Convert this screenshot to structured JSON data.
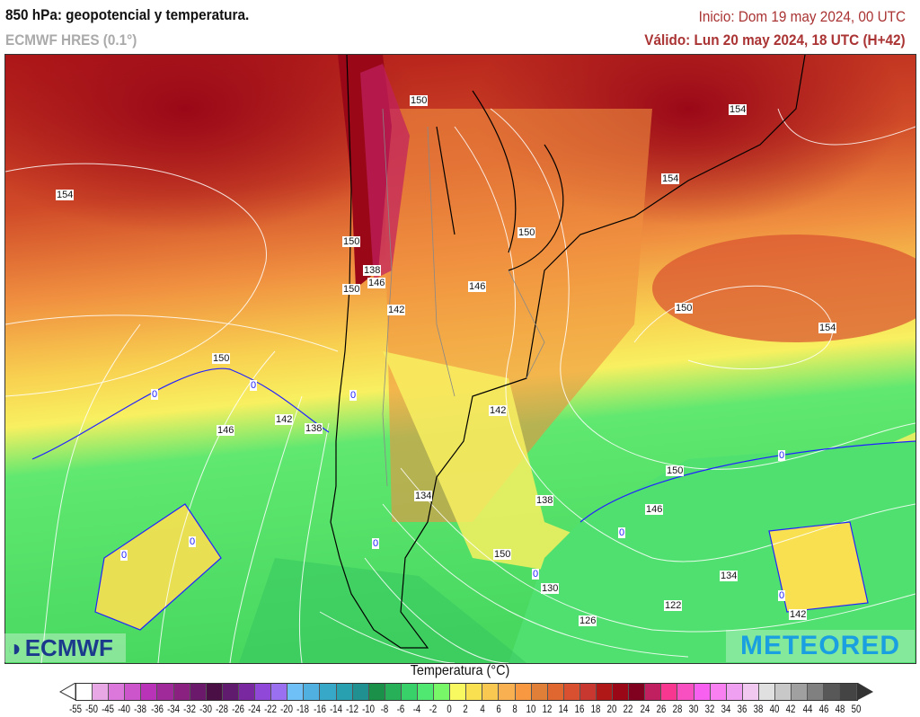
{
  "header": {
    "title": "850 hPa: geopotencial y temperatura.",
    "model": "ECMWF HRES (0.1°)",
    "init": "Inicio: Dom 19 may 2024, 00 UTC",
    "valid": "Válido: Lun 20 may 2024, 18 UTC (H+42)"
  },
  "map": {
    "contour_labels": [
      "154",
      "150",
      "150",
      "154",
      "154",
      "150",
      "150",
      "150",
      "146",
      "142",
      "150",
      "154",
      "150",
      "146",
      "142",
      "138",
      "142",
      "134",
      "138",
      "146",
      "150",
      "130",
      "126",
      "122",
      "134",
      "142",
      "138",
      "146"
    ],
    "freezing_labels": [
      "0",
      "0",
      "0",
      "0",
      "0",
      "0",
      "0",
      "0",
      "0",
      "0"
    ],
    "accent_colors": {
      "warm": "#a01818",
      "mild": "#f8e050",
      "cool": "#50e070",
      "coast": "#000000",
      "contour": "#ffffff"
    }
  },
  "logos": {
    "left": "ECMWF",
    "right": "METEORED"
  },
  "colorbar": {
    "title": "Temperatura (°C)",
    "labels": [
      "-55",
      "-50",
      "-45",
      "-40",
      "-38",
      "-36",
      "-34",
      "-32",
      "-30",
      "-28",
      "-26",
      "-24",
      "-22",
      "-20",
      "-18",
      "-16",
      "-14",
      "-12",
      "-10",
      "-8",
      "-6",
      "-4",
      "-2",
      "0",
      "2",
      "4",
      "6",
      "8",
      "10",
      "12",
      "14",
      "16",
      "18",
      "20",
      "22",
      "24",
      "26",
      "28",
      "30",
      "32",
      "34",
      "36",
      "38",
      "40",
      "42",
      "44",
      "46",
      "48",
      "50"
    ],
    "colors": [
      "#ffffff",
      "#e8a8e6",
      "#dc78dc",
      "#cc55cc",
      "#b833b8",
      "#a02a9a",
      "#8a2080",
      "#6b1a6b",
      "#4a1045",
      "#601a6e",
      "#7a28a0",
      "#8f48d8",
      "#9b70f0",
      "#70c0f8",
      "#50b0e0",
      "#38a8c8",
      "#28a0b0",
      "#209090",
      "#1a9048",
      "#28b058",
      "#38d068",
      "#50e870",
      "#78f868",
      "#f8f860",
      "#f8e050",
      "#f8c850",
      "#f8b050",
      "#f89840",
      "#e08038",
      "#e06830",
      "#d85030",
      "#c83830",
      "#b01818",
      "#9a0818",
      "#800020",
      "#c02060",
      "#f83890",
      "#f850c0",
      "#f860f0",
      "#f880f0",
      "#f0a0f0",
      "#f0c8f0",
      "#e0e0e0",
      "#c8c8c8",
      "#a0a0a0",
      "#808080",
      "#585858",
      "#444444"
    ],
    "under_color": "#ffffff",
    "over_color": "#333333"
  }
}
